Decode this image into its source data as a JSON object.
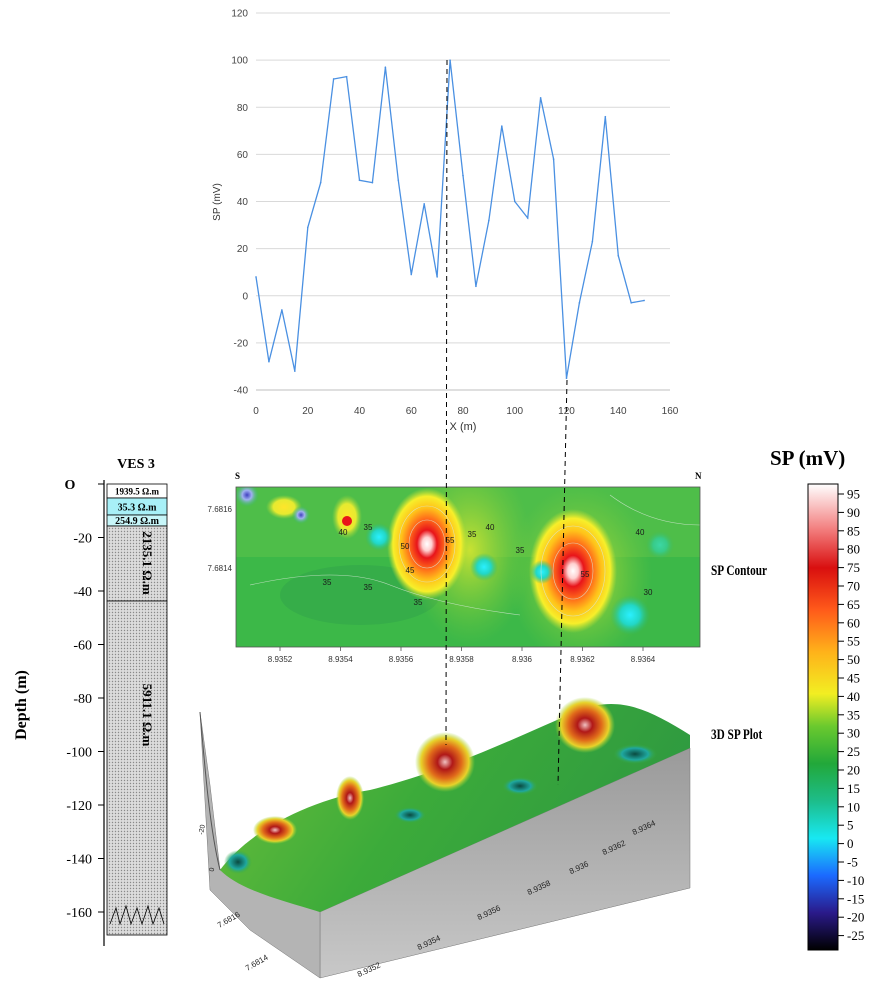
{
  "chart_data": [
    {
      "type": "line",
      "xlabel": "X (m)",
      "ylabel": "SP (mV)",
      "xlim": [
        0,
        160
      ],
      "ylim": [
        -40,
        120
      ],
      "x_ticks": [
        "0",
        "20",
        "40",
        "60",
        "80",
        "100",
        "120",
        "140",
        "160"
      ],
      "y_ticks": [
        "-40",
        "-20",
        "0",
        "20",
        "40",
        "60",
        "80",
        "100",
        "120"
      ],
      "grid": "horizontal",
      "line_color": "#4a90e2",
      "x": [
        0,
        5,
        10,
        15,
        20,
        25,
        30,
        35,
        40,
        45,
        50,
        55,
        60,
        65,
        70,
        75,
        80,
        85,
        90,
        95,
        100,
        105,
        110,
        115,
        120,
        125,
        130,
        135,
        140,
        145,
        150
      ],
      "y": [
        8,
        -28,
        -6,
        -32,
        29,
        48,
        92,
        93,
        49,
        48,
        97,
        49,
        9,
        39,
        8,
        100,
        51,
        4,
        32,
        72,
        40,
        33,
        84,
        58,
        -35,
        -3,
        23,
        76,
        17,
        -3,
        -2
      ]
    },
    {
      "type": "table",
      "title": "VES 3",
      "ylabel": "Depth (m)",
      "y_ticks": [
        "O",
        "-20",
        "-40",
        "-60",
        "-80",
        "-100",
        "-120",
        "-140",
        "-160"
      ],
      "layers": [
        {
          "label": "1939.5 Ω.m"
        },
        {
          "label": "35.3 Ω.m"
        },
        {
          "label": "254.9 Ω.m"
        },
        {
          "label": "2135.1 Ω.m"
        },
        {
          "label": "5911.1 Ω.m"
        }
      ]
    },
    {
      "type": "heatmap",
      "title": "SP Contour",
      "corner_labels": [
        "S",
        "N"
      ],
      "x_ticks": [
        "8.9352",
        "8.9354",
        "8.9356",
        "8.9358",
        "8.936",
        "8.9362",
        "8.9364"
      ],
      "y_ticks": [
        "7.6816",
        "7.6814"
      ],
      "contour_labels": [
        "40",
        "35",
        "35",
        "35",
        "50",
        "55",
        "45",
        "35",
        "35",
        "40",
        "55",
        "35",
        "30",
        "40"
      ]
    },
    {
      "type": "heatmap",
      "title": "3D SP Plot",
      "x_ticks": [
        "8.9352",
        "8.9354",
        "8.9356",
        "8.9358",
        "8.936",
        "8.9362",
        "8.9364"
      ],
      "y_ticks": [
        "7.6816",
        "7.6814"
      ],
      "z_ticks": [
        "-20",
        "0"
      ]
    },
    {
      "type": "heatmap",
      "title": "SP (mV)",
      "colorbar_ticks": [
        "95",
        "90",
        "85",
        "80",
        "75",
        "70",
        "65",
        "60",
        "55",
        "50",
        "45",
        "40",
        "35",
        "30",
        "25",
        "20",
        "15",
        "10",
        "5",
        "0",
        "-5",
        "-10",
        "-15",
        "-20",
        "-25"
      ]
    }
  ]
}
